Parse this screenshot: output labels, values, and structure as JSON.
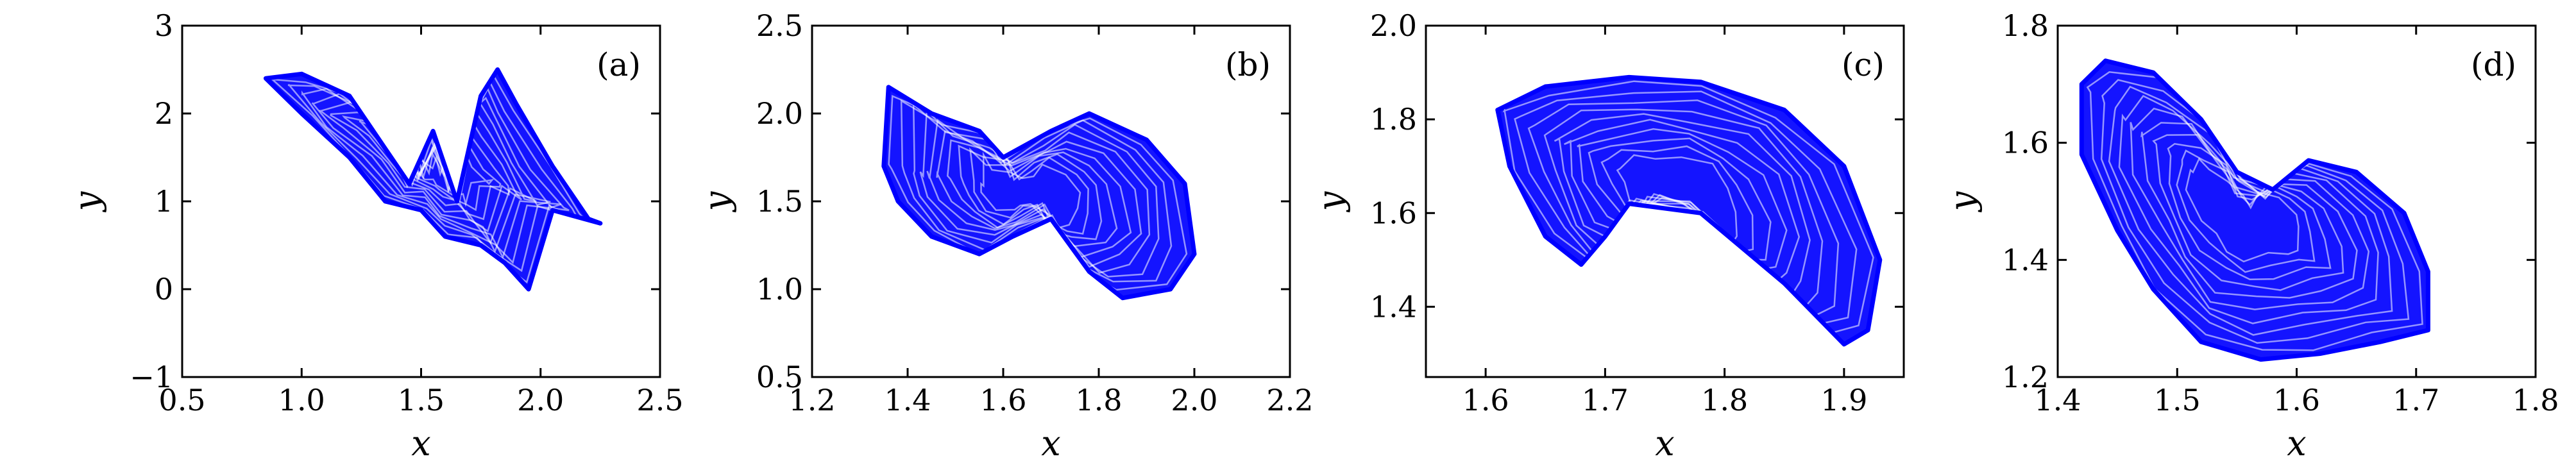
{
  "figure": {
    "series_color": "#0000ff"
  },
  "chart_data": [
    {
      "type": "line",
      "panel_label": "(a)",
      "xlabel": "x",
      "ylabel": "y",
      "xlim": [
        0.5,
        2.5
      ],
      "ylim": [
        -1,
        3
      ],
      "xticks": [
        0.5,
        1.0,
        1.5,
        2.0,
        2.5
      ],
      "xtick_labels": [
        "0.5",
        "1.0",
        "1.5",
        "2.0",
        "2.5"
      ],
      "yticks": [
        -1,
        0,
        1,
        2,
        3
      ],
      "ytick_labels": [
        "−1",
        "0",
        "1",
        "2",
        "3"
      ],
      "series": [
        {
          "color": "#0000ff",
          "points": [
            [
              0.85,
              2.4
            ],
            [
              1.0,
              2.45
            ],
            [
              1.2,
              2.2
            ],
            [
              1.35,
              1.6
            ],
            [
              1.45,
              1.2
            ],
            [
              1.55,
              1.8
            ],
            [
              1.65,
              1.0
            ],
            [
              1.75,
              2.2
            ],
            [
              1.82,
              2.5
            ],
            [
              1.9,
              2.1
            ],
            [
              2.05,
              1.4
            ],
            [
              2.2,
              0.8
            ],
            [
              2.25,
              0.75
            ],
            [
              2.05,
              0.9
            ],
            [
              1.95,
              0.0
            ],
            [
              1.85,
              0.3
            ],
            [
              1.75,
              0.5
            ],
            [
              1.6,
              0.6
            ],
            [
              1.5,
              0.9
            ],
            [
              1.35,
              1.0
            ],
            [
              1.2,
              1.5
            ],
            [
              1.0,
              2.0
            ],
            [
              0.85,
              2.4
            ]
          ]
        }
      ]
    },
    {
      "type": "line",
      "panel_label": "(b)",
      "xlabel": "x",
      "ylabel": "y",
      "xlim": [
        1.2,
        2.2
      ],
      "ylim": [
        0.5,
        2.5
      ],
      "xticks": [
        1.2,
        1.4,
        1.6,
        1.8,
        2.0,
        2.2
      ],
      "xtick_labels": [
        "1.2",
        "1.4",
        "1.6",
        "1.8",
        "2.0",
        "2.2"
      ],
      "yticks": [
        0.5,
        1.0,
        1.5,
        2.0,
        2.5
      ],
      "ytick_labels": [
        "0.5",
        "1.0",
        "1.5",
        "2.0",
        "2.5"
      ],
      "series": [
        {
          "color": "#0000ff",
          "points": [
            [
              1.35,
              1.7
            ],
            [
              1.36,
              2.15
            ],
            [
              1.45,
              2.0
            ],
            [
              1.55,
              1.9
            ],
            [
              1.6,
              1.75
            ],
            [
              1.7,
              1.9
            ],
            [
              1.78,
              2.0
            ],
            [
              1.9,
              1.85
            ],
            [
              1.98,
              1.6
            ],
            [
              2.0,
              1.2
            ],
            [
              1.95,
              1.0
            ],
            [
              1.85,
              0.95
            ],
            [
              1.78,
              1.1
            ],
            [
              1.7,
              1.4
            ],
            [
              1.62,
              1.3
            ],
            [
              1.55,
              1.2
            ],
            [
              1.45,
              1.3
            ],
            [
              1.38,
              1.5
            ],
            [
              1.35,
              1.7
            ]
          ]
        }
      ]
    },
    {
      "type": "line",
      "panel_label": "(c)",
      "xlabel": "x",
      "ylabel": "y",
      "xlim": [
        1.55,
        1.95
      ],
      "ylim": [
        1.25,
        2.0
      ],
      "xticks": [
        1.6,
        1.7,
        1.8,
        1.9
      ],
      "xtick_labels": [
        "1.6",
        "1.7",
        "1.8",
        "1.9"
      ],
      "yticks": [
        1.4,
        1.6,
        1.8,
        2.0
      ],
      "ytick_labels": [
        "1.4",
        "1.6",
        "1.8",
        "2.0"
      ],
      "series": [
        {
          "color": "#0000ff",
          "points": [
            [
              1.61,
              1.82
            ],
            [
              1.65,
              1.87
            ],
            [
              1.72,
              1.89
            ],
            [
              1.78,
              1.88
            ],
            [
              1.85,
              1.82
            ],
            [
              1.9,
              1.7
            ],
            [
              1.93,
              1.5
            ],
            [
              1.92,
              1.35
            ],
            [
              1.9,
              1.32
            ],
            [
              1.85,
              1.45
            ],
            [
              1.78,
              1.6
            ],
            [
              1.72,
              1.62
            ],
            [
              1.7,
              1.55
            ],
            [
              1.68,
              1.49
            ],
            [
              1.65,
              1.55
            ],
            [
              1.62,
              1.7
            ],
            [
              1.61,
              1.82
            ]
          ]
        }
      ]
    },
    {
      "type": "line",
      "panel_label": "(d)",
      "xlabel": "x",
      "ylabel": "y",
      "xlim": [
        1.4,
        1.8
      ],
      "ylim": [
        1.2,
        1.8
      ],
      "xticks": [
        1.4,
        1.5,
        1.6,
        1.7,
        1.8
      ],
      "xtick_labels": [
        "1.4",
        "1.5",
        "1.6",
        "1.7",
        "1.8"
      ],
      "yticks": [
        1.2,
        1.4,
        1.6,
        1.8
      ],
      "ytick_labels": [
        "1.2",
        "1.4",
        "1.6",
        "1.8"
      ],
      "series": [
        {
          "color": "#0000ff",
          "points": [
            [
              1.42,
              1.7
            ],
            [
              1.44,
              1.74
            ],
            [
              1.48,
              1.72
            ],
            [
              1.52,
              1.64
            ],
            [
              1.55,
              1.55
            ],
            [
              1.58,
              1.52
            ],
            [
              1.61,
              1.57
            ],
            [
              1.65,
              1.55
            ],
            [
              1.69,
              1.48
            ],
            [
              1.71,
              1.38
            ],
            [
              1.71,
              1.28
            ],
            [
              1.67,
              1.26
            ],
            [
              1.62,
              1.24
            ],
            [
              1.57,
              1.23
            ],
            [
              1.52,
              1.26
            ],
            [
              1.48,
              1.35
            ],
            [
              1.45,
              1.45
            ],
            [
              1.42,
              1.58
            ],
            [
              1.42,
              1.7
            ]
          ]
        }
      ]
    }
  ]
}
